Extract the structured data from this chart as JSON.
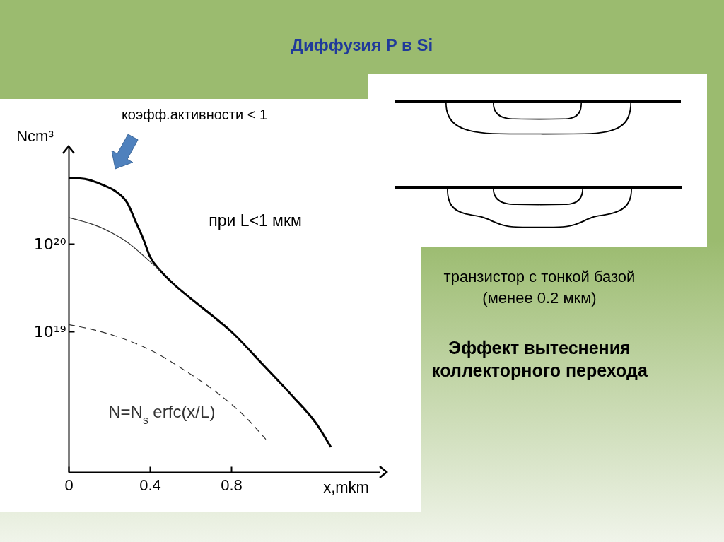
{
  "chart_data": {
    "type": "line",
    "title": "Диффузия P в Si",
    "xlabel": "x,mkm",
    "ylabel": "Ncm³",
    "series": [
      {
        "color": "#000000",
        "line_style": "solid",
        "x": [
          0,
          0.08,
          0.17,
          0.23,
          0.29,
          0.33,
          0.37,
          0.4,
          0.45,
          0.51,
          0.59,
          0.71,
          0.8,
          0.96,
          1.1,
          1.22,
          1.29
        ],
        "values": [
          5.7e+20,
          5.5e+20,
          4.7e+20,
          4e+20,
          2.9e+20,
          1.8e+20,
          1.1e+20,
          7.2e+19,
          5e+19,
          3.6e+19,
          2.5e+19,
          1.5e+19,
          1e+19,
          4.1e+18,
          1.85e+18,
          8.8e+17,
          4.8e+17
        ]
      },
      {
        "color": "#333333",
        "line_style": "solid",
        "x": [
          0,
          0.17,
          0.23,
          0.29,
          0.35,
          0.4,
          0.45
        ],
        "values": [
          2e+20,
          1.5e+20,
          1.27e+20,
          1.04e+20,
          8e+19,
          6.3e+19,
          5e+19
        ]
      },
      {
        "name": "N=N$_{s}$ erfc(x/L)",
        "color": "#333333",
        "line_style": "dashed",
        "x": [
          0,
          0.13,
          0.23,
          0.4,
          0.58,
          0.75,
          0.87,
          0.97
        ],
        "values": [
          1.2e+19,
          1.04e+19,
          8.9e+18,
          6.2e+18,
          3.5e+18,
          1.85e+18,
          1.06e+18,
          5.9e+17
        ]
      }
    ],
    "xlim": [
      0,
      1.53
    ],
    "ylim": [
      2.5e+17,
      1.3e+21
    ],
    "xticks": [
      0,
      0.4,
      0.8
    ],
    "yticks": [
      {
        "value": 1e+19,
        "label": "10¹⁹"
      },
      {
        "value": 1e+20,
        "label": "10²⁰"
      }
    ],
    "log": "y",
    "grid": false,
    "annotations": [
      "коэфф.активности < 1",
      "при L<1 мкм",
      "транзистор с тонкой базой (менее 0.2 мкм)",
      "Эффект вытеснения коллекторного перехода"
    ]
  }
}
